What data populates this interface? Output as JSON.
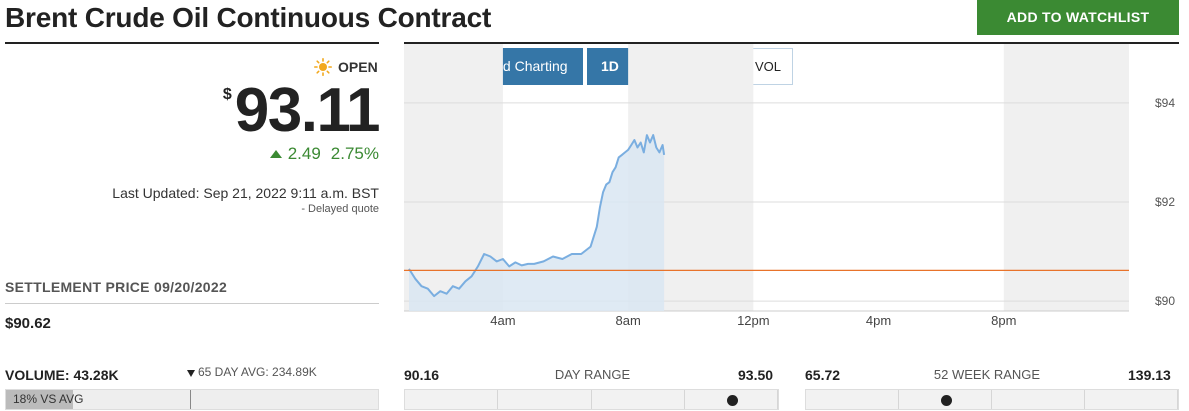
{
  "header": {
    "title": "Brent Crude Oil Continuous Contract",
    "watchlist_label": "ADD TO WATCHLIST"
  },
  "quote": {
    "market_status": "OPEN",
    "currency_symbol": "$",
    "price": "93.11",
    "change": "2.49",
    "change_percent": "2.75%",
    "last_updated": "Last Updated: Sep 21, 2022 9:11 a.m. BST",
    "delayed_note": "-  Delayed quote",
    "up_color": "#3b8a33"
  },
  "settlement": {
    "label": "SETTLEMENT PRICE 09/20/2022",
    "value": "$90.62"
  },
  "volume": {
    "label": "VOLUME: 43.28K",
    "avg_label": "65 DAY AVG: 234.89K",
    "vs_avg_text": "18% VS AVG",
    "vs_avg_fraction": 0.18
  },
  "toolbar": {
    "back_symbol": "‹",
    "advanced_label": "Advanced Charting",
    "range_label": "1D",
    "dollar_label": "$",
    "percent_label": "%",
    "vol_label": "VOL"
  },
  "chart_data": {
    "type": "area",
    "x_ticks": [
      "4am",
      "8am",
      "12pm",
      "4pm",
      "8pm"
    ],
    "y_ticks": [
      "$94",
      "$92",
      "$90"
    ],
    "ylim": [
      89.8,
      94.3
    ],
    "reference_line": 90.62,
    "reference_color": "#e8732a",
    "series_color": "#7aaee0",
    "x": [
      1.0,
      1.2,
      1.4,
      1.6,
      1.8,
      2.0,
      2.2,
      2.4,
      2.6,
      2.8,
      3.0,
      3.2,
      3.4,
      3.6,
      3.8,
      4.0,
      4.2,
      4.4,
      4.6,
      4.8,
      5.0,
      5.3,
      5.6,
      5.9,
      6.2,
      6.5,
      6.8,
      7.0,
      7.1,
      7.2,
      7.3,
      7.4,
      7.5,
      7.6,
      7.7,
      7.8,
      7.9,
      8.0,
      8.1,
      8.2,
      8.3,
      8.4,
      8.5,
      8.6,
      8.7,
      8.8,
      8.9,
      9.0,
      9.1,
      9.15
    ],
    "y": [
      90.65,
      90.45,
      90.3,
      90.25,
      90.1,
      90.2,
      90.15,
      90.3,
      90.25,
      90.4,
      90.5,
      90.7,
      90.95,
      90.9,
      90.8,
      90.85,
      90.7,
      90.78,
      90.72,
      90.75,
      90.75,
      90.8,
      90.9,
      90.85,
      90.95,
      90.95,
      91.1,
      91.5,
      91.9,
      92.2,
      92.35,
      92.4,
      92.6,
      92.7,
      92.9,
      92.95,
      93.0,
      93.05,
      93.15,
      93.25,
      93.1,
      93.2,
      93.0,
      93.35,
      93.2,
      93.35,
      93.1,
      93.0,
      93.15,
      92.95
    ]
  },
  "day_range": {
    "low": "90.16",
    "label": "DAY RANGE",
    "high": "93.50",
    "position_fraction": 0.88
  },
  "week52_range": {
    "low": "65.72",
    "label": "52 WEEK RANGE",
    "high": "139.13",
    "position_fraction": 0.38
  }
}
